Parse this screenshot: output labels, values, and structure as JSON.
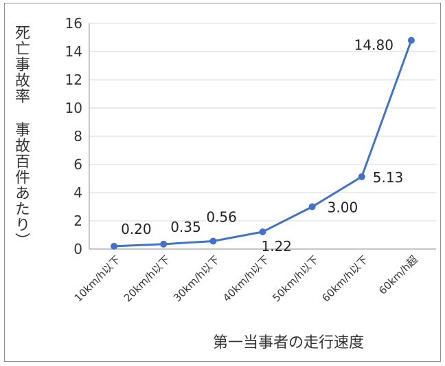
{
  "chart_data": {
    "type": "line",
    "title": "",
    "ylabel": "死亡事故率 事故百件あたり）",
    "xlabel": "第一当事者の走行速度",
    "categories": [
      "10km/h以下",
      "20km/h以下",
      "30km/h以下",
      "40km/h以下",
      "50km/h以下",
      "60km/h以下",
      "60km/h超"
    ],
    "values": [
      0.2,
      0.35,
      0.56,
      1.22,
      3.0,
      5.13,
      14.8
    ],
    "data_labels": [
      "0.20",
      "0.35",
      "0.56",
      "1.22",
      "3.00",
      "5.13",
      "14.80"
    ],
    "ylim": [
      0,
      16
    ],
    "yticks": [
      0,
      2,
      4,
      6,
      8,
      10,
      12,
      14,
      16
    ],
    "grid": true,
    "line_color": "#4472c4"
  }
}
